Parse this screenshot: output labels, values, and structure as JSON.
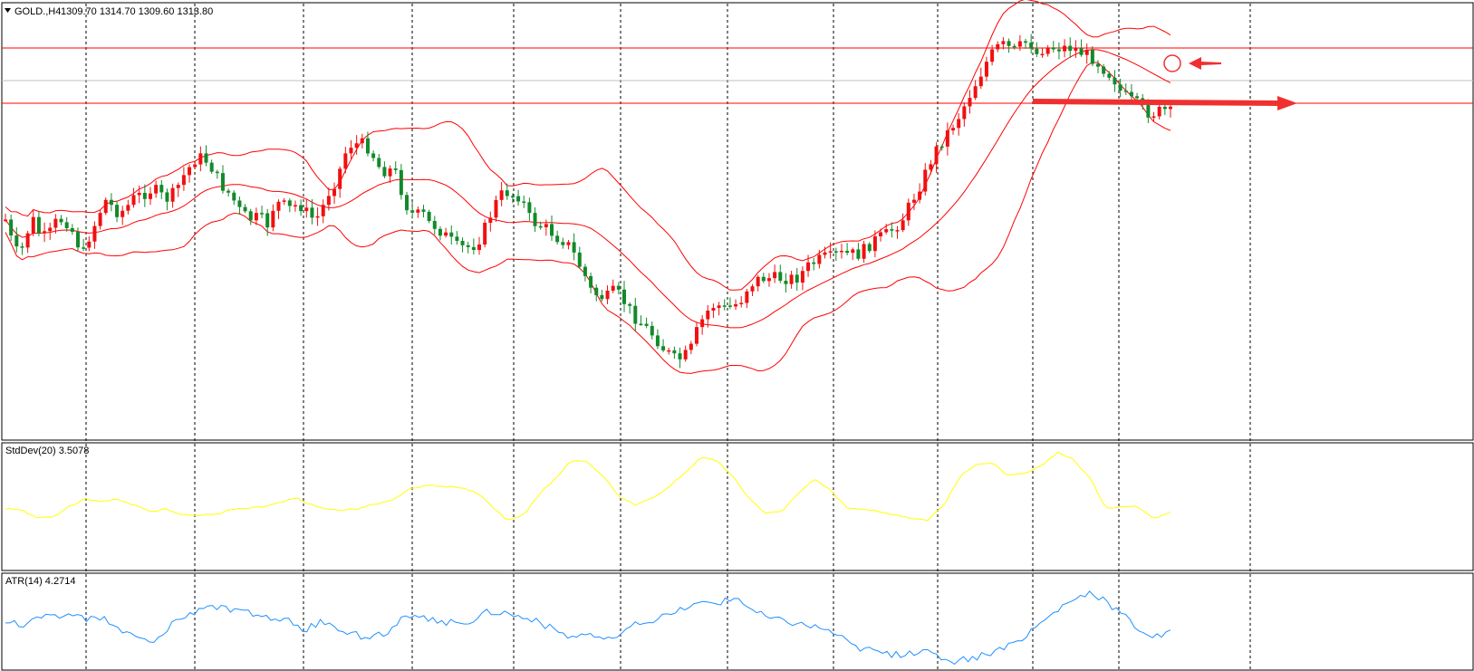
{
  "header": {
    "symbol": "GOLD.,H4",
    "ohlc": "1309.70 1314.70 1309.60 1313.80"
  },
  "stddev_label": "StdDev(20) 3.5078",
  "atr_label": "ATR(14) 4.2714",
  "colors": {
    "bull": "#f01010",
    "bear": "#128a2a",
    "bollinger": "#ff0000",
    "stddev": "#ffff00",
    "atr": "#1e90ff",
    "level": "#ff0000",
    "grid": "#000000",
    "annotation": "#f03030"
  },
  "chart_data": [
    {
      "type": "candlestick",
      "title": "GOLD.,H4",
      "indicator": "Bollinger Bands",
      "y_scale": "relative",
      "close_path": [
        0.48,
        0.41,
        0.37,
        0.44,
        0.48,
        0.43,
        0.43,
        0.47,
        0.48,
        0.47,
        0.42,
        0.38,
        0.44,
        0.48,
        0.54,
        0.52,
        0.5,
        0.51,
        0.54,
        0.55,
        0.56,
        0.57,
        0.55,
        0.54,
        0.56,
        0.6,
        0.63,
        0.66,
        0.66,
        0.64,
        0.6,
        0.57,
        0.55,
        0.51,
        0.49,
        0.48,
        0.49,
        0.46,
        0.52,
        0.53,
        0.51,
        0.52,
        0.52,
        0.49,
        0.48,
        0.52,
        0.57,
        0.6,
        0.67,
        0.7,
        0.7,
        0.7,
        0.67,
        0.63,
        0.62,
        0.63,
        0.57,
        0.51,
        0.49,
        0.5,
        0.47,
        0.46,
        0.44,
        0.42,
        0.4,
        0.4,
        0.4,
        0.42,
        0.46,
        0.51,
        0.55,
        0.56,
        0.55,
        0.55,
        0.49,
        0.47,
        0.46,
        0.45,
        0.43,
        0.42,
        0.4,
        0.36,
        0.32,
        0.27,
        0.26,
        0.25,
        0.27,
        0.26,
        0.23,
        0.2,
        0.18,
        0.16,
        0.14,
        0.11,
        0.09,
        0.07,
        0.08,
        0.1,
        0.16,
        0.2,
        0.23,
        0.23,
        0.22,
        0.23,
        0.24,
        0.28,
        0.3,
        0.31,
        0.31,
        0.31,
        0.31,
        0.31,
        0.31,
        0.33,
        0.35,
        0.36,
        0.37,
        0.37,
        0.38,
        0.38,
        0.38,
        0.38,
        0.4,
        0.42,
        0.43,
        0.44,
        0.46,
        0.48,
        0.52,
        0.56,
        0.6,
        0.65,
        0.69,
        0.72,
        0.75,
        0.78,
        0.82,
        0.86,
        0.9,
        0.94,
        0.97,
        0.99,
        0.98,
        0.97,
        0.99,
        1.0,
        0.96,
        0.98,
        0.98,
        0.98,
        0.98,
        0.98,
        0.97,
        0.96,
        0.95,
        0.93,
        0.91,
        0.89,
        0.85,
        0.83,
        0.82,
        0.8,
        0.79,
        0.79,
        0.8,
        0.79
      ]
    },
    {
      "type": "line",
      "title": "StdDev(20) 3.5078",
      "y_scale": "relative",
      "values": [
        0.4,
        0.38,
        0.31,
        0.32,
        0.43,
        0.5,
        0.48,
        0.49,
        0.43,
        0.37,
        0.4,
        0.33,
        0.33,
        0.34,
        0.39,
        0.4,
        0.42,
        0.46,
        0.51,
        0.43,
        0.39,
        0.38,
        0.41,
        0.45,
        0.5,
        0.6,
        0.65,
        0.63,
        0.62,
        0.58,
        0.44,
        0.28,
        0.33,
        0.55,
        0.72,
        0.9,
        0.88,
        0.73,
        0.51,
        0.43,
        0.52,
        0.62,
        0.78,
        0.93,
        0.9,
        0.72,
        0.5,
        0.35,
        0.37,
        0.57,
        0.7,
        0.59,
        0.41,
        0.4,
        0.36,
        0.34,
        0.3,
        0.28,
        0.44,
        0.73,
        0.87,
        0.87,
        0.74,
        0.76,
        0.84,
        0.99,
        0.91,
        0.72,
        0.41,
        0.42,
        0.42,
        0.3,
        0.37
      ]
    },
    {
      "type": "line",
      "title": "ATR(14) 4.2714",
      "y_scale": "relative",
      "values": [
        0.55,
        0.48,
        0.58,
        0.57,
        0.62,
        0.55,
        0.56,
        0.42,
        0.34,
        0.28,
        0.52,
        0.6,
        0.72,
        0.68,
        0.63,
        0.62,
        0.56,
        0.53,
        0.44,
        0.52,
        0.46,
        0.38,
        0.33,
        0.42,
        0.58,
        0.56,
        0.52,
        0.52,
        0.54,
        0.64,
        0.63,
        0.58,
        0.52,
        0.44,
        0.35,
        0.4,
        0.3,
        0.38,
        0.51,
        0.55,
        0.6,
        0.7,
        0.74,
        0.75,
        0.8,
        0.64,
        0.56,
        0.53,
        0.49,
        0.46,
        0.38,
        0.24,
        0.21,
        0.16,
        0.14,
        0.2,
        0.14,
        0.08,
        0.1,
        0.16,
        0.21,
        0.33,
        0.48,
        0.63,
        0.77,
        0.84,
        0.76,
        0.63,
        0.46,
        0.35,
        0.4
      ]
    }
  ]
}
